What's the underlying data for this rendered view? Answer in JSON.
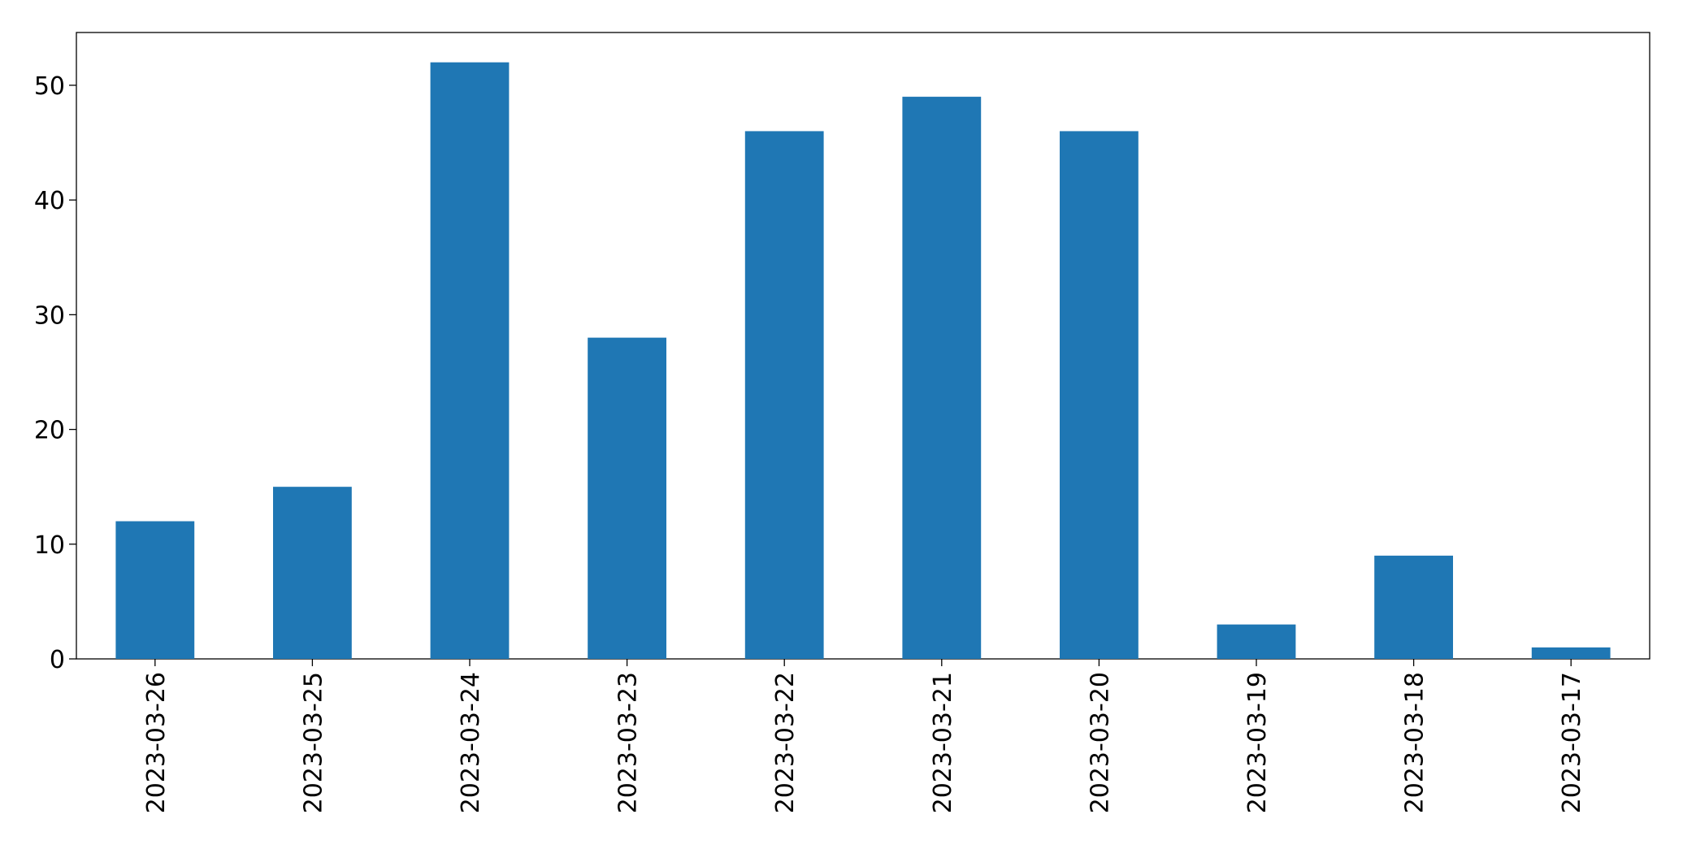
{
  "chart_data": {
    "type": "bar",
    "categories": [
      "2023-03-26",
      "2023-03-25",
      "2023-03-24",
      "2023-03-23",
      "2023-03-22",
      "2023-03-21",
      "2023-03-20",
      "2023-03-19",
      "2023-03-18",
      "2023-03-17"
    ],
    "values": [
      12,
      15,
      52,
      28,
      46,
      49,
      46,
      3,
      9,
      1
    ],
    "color": "#1f77b4",
    "ylim": [
      0,
      54.6
    ],
    "yticks": [
      0,
      10,
      20,
      30,
      40,
      50
    ],
    "grid": false
  }
}
